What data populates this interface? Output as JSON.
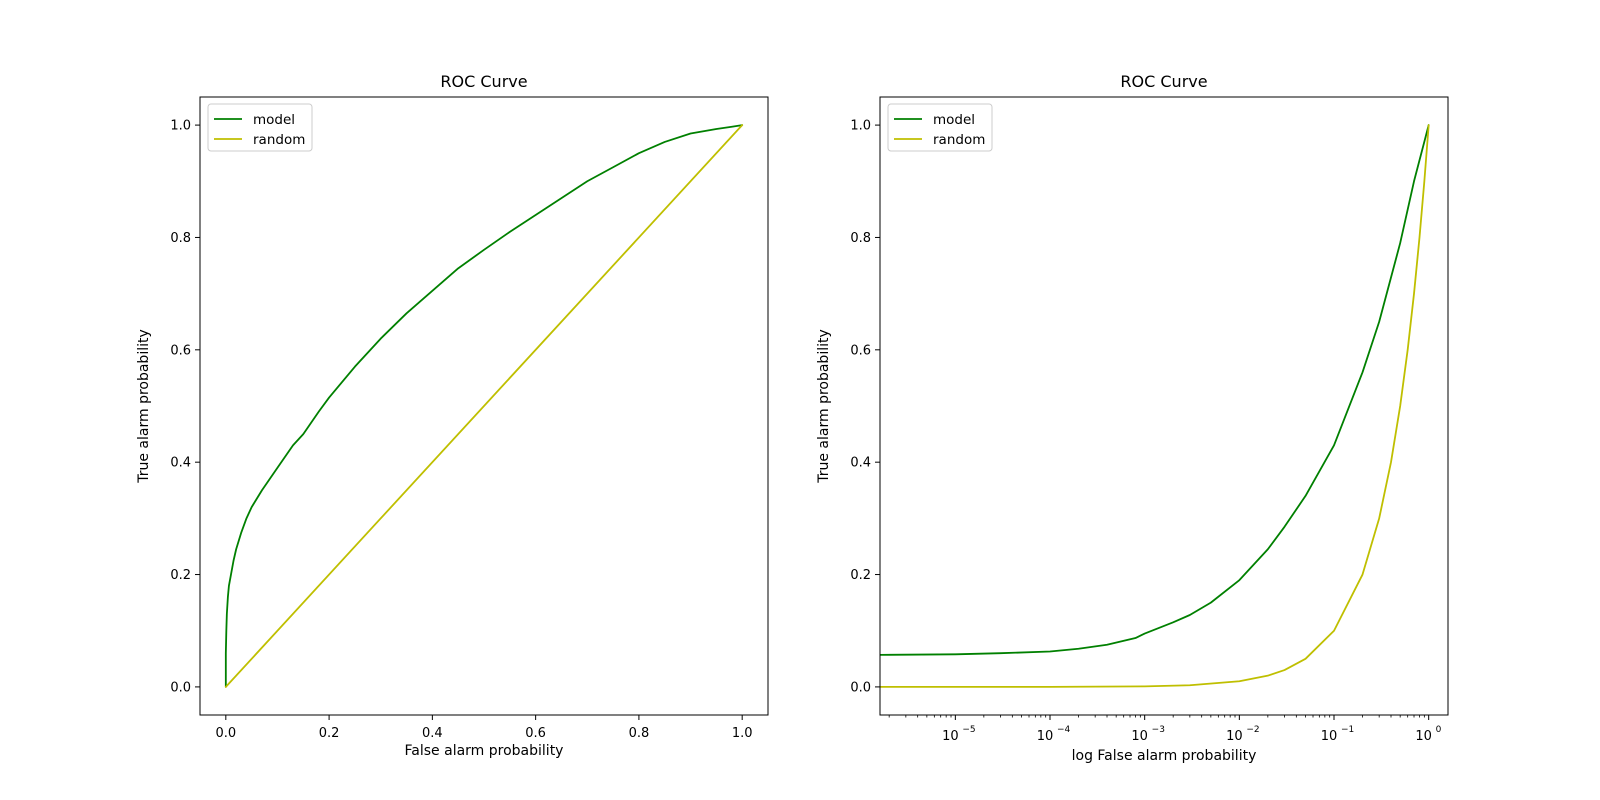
{
  "colors": {
    "model": "#008000",
    "random": "#bfbf00",
    "axes": "#000000",
    "legend_border": "#cccccc",
    "background": "#ffffff"
  },
  "chart_data": [
    {
      "type": "line",
      "title": "ROC Curve",
      "xlabel": "False alarm probability",
      "ylabel": "True alarm probability",
      "xscale": "linear",
      "xlim": [
        -0.05,
        1.05
      ],
      "ylim": [
        -0.05,
        1.05
      ],
      "xticks": [
        0.0,
        0.2,
        0.4,
        0.6,
        0.8,
        1.0
      ],
      "xtick_labels": [
        "0.0",
        "0.2",
        "0.4",
        "0.6",
        "0.8",
        "1.0"
      ],
      "yticks": [
        0.0,
        0.2,
        0.4,
        0.6,
        0.8,
        1.0
      ],
      "ytick_labels": [
        "0.0",
        "0.2",
        "0.4",
        "0.6",
        "0.8",
        "1.0"
      ],
      "grid": false,
      "legend": "upper-left",
      "series": [
        {
          "name": "model",
          "color": "#008000",
          "x": [
            0,
            0,
            0.001,
            0.002,
            0.004,
            0.006,
            0.01,
            0.015,
            0.02,
            0.03,
            0.04,
            0.05,
            0.07,
            0.1,
            0.13,
            0.15,
            0.18,
            0.2,
            0.25,
            0.3,
            0.35,
            0.4,
            0.45,
            0.5,
            0.55,
            0.6,
            0.65,
            0.7,
            0.75,
            0.8,
            0.85,
            0.9,
            0.95,
            0.98,
            1.0
          ],
          "y": [
            0,
            0.06,
            0.1,
            0.13,
            0.16,
            0.18,
            0.2,
            0.225,
            0.245,
            0.275,
            0.3,
            0.32,
            0.35,
            0.39,
            0.43,
            0.45,
            0.49,
            0.515,
            0.57,
            0.62,
            0.665,
            0.705,
            0.745,
            0.778,
            0.81,
            0.84,
            0.87,
            0.9,
            0.925,
            0.95,
            0.97,
            0.985,
            0.993,
            0.997,
            1.0
          ]
        },
        {
          "name": "random",
          "color": "#bfbf00",
          "x": [
            0,
            1
          ],
          "y": [
            0,
            1
          ]
        }
      ]
    },
    {
      "type": "line",
      "title": "ROC Curve",
      "xlabel": "log False alarm probability",
      "ylabel": "True alarm probability",
      "xscale": "log",
      "xlim": [
        1.6e-06,
        1.6
      ],
      "ylim": [
        -0.05,
        1.05
      ],
      "xticks": [
        1e-05,
        0.0001,
        0.001,
        0.01,
        0.1,
        1
      ],
      "xtick_labels": [
        {
          "base": "10",
          "exp": "−5"
        },
        {
          "base": "10",
          "exp": "−4"
        },
        {
          "base": "10",
          "exp": "−3"
        },
        {
          "base": "10",
          "exp": "−2"
        },
        {
          "base": "10",
          "exp": "−1"
        },
        {
          "base": "10",
          "exp": "0"
        }
      ],
      "yticks": [
        0.0,
        0.2,
        0.4,
        0.6,
        0.8,
        1.0
      ],
      "ytick_labels": [
        "0.0",
        "0.2",
        "0.4",
        "0.6",
        "0.8",
        "1.0"
      ],
      "grid": false,
      "legend": "upper-left",
      "series": [
        {
          "name": "model",
          "color": "#008000",
          "x": [
            1.6e-06,
            1e-05,
            3e-05,
            0.0001,
            0.0002,
            0.0004,
            0.0008,
            0.001,
            0.002,
            0.003,
            0.005,
            0.01,
            0.02,
            0.03,
            0.05,
            0.1,
            0.2,
            0.3,
            0.5,
            0.7,
            1
          ],
          "y": [
            0.057,
            0.058,
            0.06,
            0.063,
            0.068,
            0.075,
            0.087,
            0.095,
            0.115,
            0.128,
            0.15,
            0.19,
            0.245,
            0.285,
            0.34,
            0.43,
            0.56,
            0.65,
            0.79,
            0.9,
            1.0
          ]
        },
        {
          "name": "random",
          "color": "#bfbf00",
          "x": [
            1.6e-06,
            1e-05,
            0.0001,
            0.001,
            0.003,
            0.01,
            0.02,
            0.03,
            0.05,
            0.1,
            0.2,
            0.3,
            0.4,
            0.5,
            0.6,
            0.7,
            0.8,
            0.9,
            1
          ],
          "y": [
            0,
            1e-05,
            0.0001,
            0.001,
            0.003,
            0.01,
            0.02,
            0.03,
            0.05,
            0.1,
            0.2,
            0.3,
            0.4,
            0.5,
            0.6,
            0.7,
            0.8,
            0.9,
            1.0
          ]
        }
      ]
    }
  ]
}
